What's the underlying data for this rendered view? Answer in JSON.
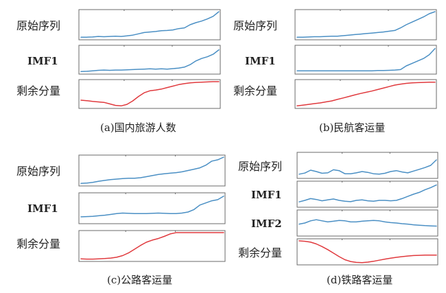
{
  "colors": {
    "component": "#4a8fc4",
    "residual": "#e0393d",
    "frame": "#6a6a6a"
  },
  "chart_data": [
    {
      "type": "line",
      "caption": "(a)国内旅游人数",
      "panels": [
        {
          "label": "原始序列",
          "role": "component",
          "values": [
            0.02,
            0.02,
            0.03,
            0.05,
            0.04,
            0.05,
            0.06,
            0.05,
            0.07,
            0.1,
            0.15,
            0.2,
            0.22,
            0.24,
            0.27,
            0.28,
            0.3,
            0.35,
            0.38,
            0.5,
            0.58,
            0.64,
            0.72,
            0.82,
            1.0
          ]
        },
        {
          "label": "IMF1",
          "role": "component",
          "values": [
            0.02,
            0.03,
            0.05,
            0.07,
            0.08,
            0.07,
            0.08,
            0.08,
            0.09,
            0.1,
            0.11,
            0.12,
            0.13,
            0.12,
            0.13,
            0.12,
            0.14,
            0.16,
            0.2,
            0.3,
            0.45,
            0.55,
            0.62,
            0.72,
            0.9
          ]
        },
        {
          "label": "剩余分量",
          "role": "residual",
          "values": [
            0.25,
            0.23,
            0.2,
            0.18,
            0.16,
            0.1,
            0.04,
            0.02,
            0.08,
            0.22,
            0.4,
            0.55,
            0.63,
            0.66,
            0.7,
            0.76,
            0.82,
            0.88,
            0.92,
            0.95,
            0.97,
            0.98,
            0.99,
            1.0,
            1.0
          ]
        }
      ]
    },
    {
      "type": "line",
      "caption": "(b)民航客运量",
      "panels": [
        {
          "label": "原始序列",
          "role": "component",
          "values": [
            0.02,
            0.02,
            0.03,
            0.04,
            0.04,
            0.05,
            0.06,
            0.06,
            0.08,
            0.1,
            0.12,
            0.14,
            0.16,
            0.18,
            0.2,
            0.22,
            0.25,
            0.28,
            0.38,
            0.5,
            0.6,
            0.7,
            0.8,
            0.92,
            1.0
          ]
        },
        {
          "label": "IMF1",
          "role": "component",
          "values": [
            0.05,
            0.05,
            0.05,
            0.05,
            0.05,
            0.05,
            0.05,
            0.05,
            0.05,
            0.05,
            0.05,
            0.05,
            0.05,
            0.05,
            0.06,
            0.06,
            0.07,
            0.08,
            0.1,
            0.25,
            0.35,
            0.45,
            0.55,
            0.7,
            0.95
          ]
        },
        {
          "label": "剩余分量",
          "role": "residual",
          "values": [
            0.02,
            0.05,
            0.08,
            0.11,
            0.14,
            0.18,
            0.22,
            0.28,
            0.34,
            0.4,
            0.46,
            0.52,
            0.57,
            0.62,
            0.68,
            0.74,
            0.8,
            0.86,
            0.9,
            0.93,
            0.95,
            0.96,
            0.97,
            0.98,
            0.98
          ]
        }
      ]
    },
    {
      "type": "line",
      "caption": "(c)公路客运量",
      "panels": [
        {
          "label": "原始序列",
          "role": "component",
          "values": [
            0.02,
            0.03,
            0.06,
            0.1,
            0.13,
            0.16,
            0.18,
            0.2,
            0.21,
            0.21,
            0.23,
            0.27,
            0.31,
            0.35,
            0.38,
            0.4,
            0.42,
            0.45,
            0.5,
            0.55,
            0.6,
            0.7,
            0.85,
            0.9,
            1.0
          ]
        },
        {
          "label": "IMF1",
          "role": "component",
          "values": [
            0.18,
            0.19,
            0.2,
            0.22,
            0.24,
            0.27,
            0.3,
            0.32,
            0.31,
            0.3,
            0.3,
            0.3,
            0.31,
            0.32,
            0.31,
            0.3,
            0.3,
            0.32,
            0.36,
            0.45,
            0.62,
            0.7,
            0.78,
            0.82,
            0.95
          ]
        },
        {
          "label": "剩余分量",
          "role": "residual",
          "values": [
            0.02,
            0.01,
            0.01,
            0.02,
            0.03,
            0.05,
            0.08,
            0.14,
            0.24,
            0.38,
            0.52,
            0.64,
            0.72,
            0.78,
            0.86,
            0.95,
            1.0,
            1.0,
            1.0,
            1.0,
            1.0,
            1.0,
            1.0,
            1.0,
            1.0
          ]
        }
      ]
    },
    {
      "type": "line",
      "caption": "(d)铁路客运量",
      "panels": [
        {
          "label": "原始序列",
          "role": "component",
          "values": [
            0.1,
            0.15,
            0.28,
            0.22,
            0.14,
            0.16,
            0.3,
            0.26,
            0.12,
            0.12,
            0.16,
            0.22,
            0.18,
            0.12,
            0.1,
            0.14,
            0.22,
            0.26,
            0.2,
            0.16,
            0.24,
            0.32,
            0.4,
            0.5,
            0.75
          ]
        },
        {
          "label": "IMF1",
          "role": "component",
          "values": [
            0.15,
            0.22,
            0.3,
            0.26,
            0.2,
            0.24,
            0.28,
            0.22,
            0.18,
            0.16,
            0.22,
            0.24,
            0.2,
            0.18,
            0.22,
            0.22,
            0.2,
            0.22,
            0.3,
            0.4,
            0.5,
            0.58,
            0.7,
            0.8,
            0.92
          ]
        },
        {
          "label": "IMF2",
          "role": "component",
          "values": [
            0.45,
            0.5,
            0.6,
            0.65,
            0.6,
            0.55,
            0.58,
            0.62,
            0.6,
            0.55,
            0.55,
            0.58,
            0.6,
            0.62,
            0.6,
            0.55,
            0.52,
            0.5,
            0.47,
            0.45,
            0.42,
            0.4,
            0.38,
            0.37,
            0.36
          ]
        },
        {
          "label": "剩余分量",
          "role": "residual",
          "values": [
            1.0,
            0.98,
            0.94,
            0.86,
            0.74,
            0.6,
            0.44,
            0.28,
            0.14,
            0.06,
            0.02,
            0.01,
            0.03,
            0.07,
            0.12,
            0.17,
            0.21,
            0.25,
            0.28,
            0.31,
            0.33,
            0.34,
            0.35,
            0.35,
            0.35
          ]
        }
      ]
    }
  ]
}
